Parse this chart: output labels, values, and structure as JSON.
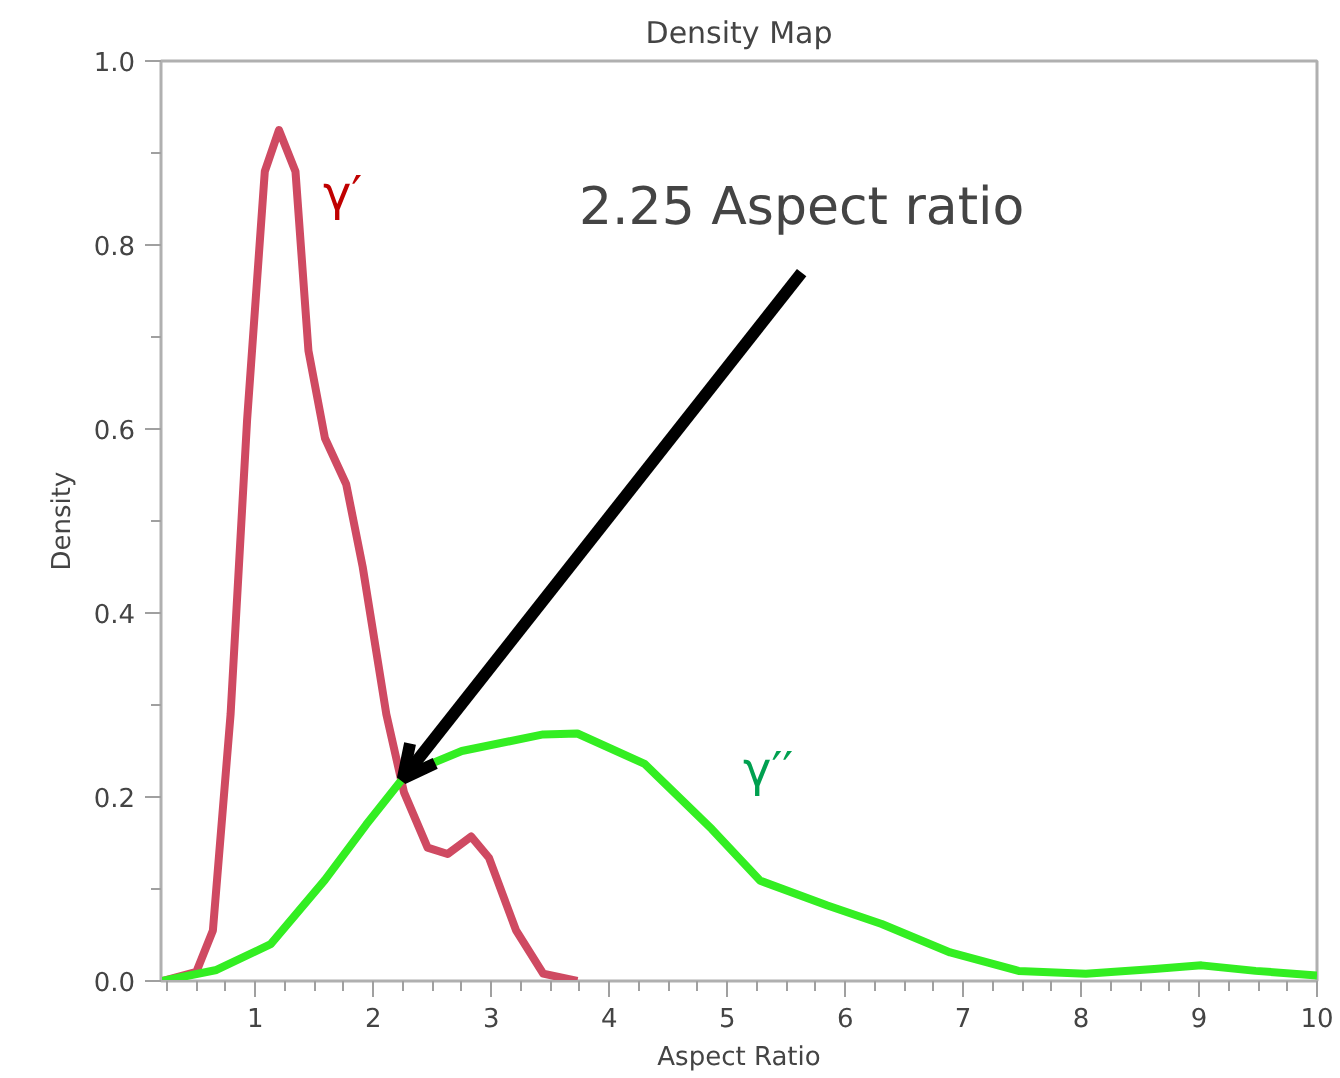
{
  "chart_data": {
    "type": "line",
    "title": "Density Map",
    "xlabel": "Aspect Ratio",
    "ylabel": "Density",
    "xlim": [
      0.2,
      10
    ],
    "xticks": [
      1,
      2,
      3,
      4,
      5,
      6,
      7,
      8,
      9,
      10
    ],
    "ylim": [
      0,
      1
    ],
    "yticks": [
      {
        "value": 0,
        "label": "0.0"
      },
      {
        "value": 0.2,
        "label": "0.2"
      },
      {
        "value": 0.4,
        "label": "0.4"
      },
      {
        "value": 0.6,
        "label": "0.6"
      },
      {
        "value": 0.8,
        "label": "0.8"
      },
      {
        "value": 1,
        "label": "1.0"
      }
    ],
    "grid": false,
    "legend": false,
    "marker": "none",
    "line_style": "solid",
    "series": [
      {
        "name": "γ′",
        "color": "#cf4a62",
        "x": [
          0.21,
          0.5,
          0.64,
          0.79,
          0.93,
          1.08,
          1.2,
          1.34,
          1.45,
          1.59,
          1.77,
          1.91,
          2.11,
          2.26,
          2.46,
          2.63,
          2.83,
          2.98,
          3.21,
          3.44,
          3.73
        ],
        "values": [
          0,
          0.01,
          0.055,
          0.29,
          0.61,
          0.88,
          0.925,
          0.88,
          0.685,
          0.59,
          0.54,
          0.45,
          0.29,
          0.205,
          0.145,
          0.138,
          0.157,
          0.134,
          0.055,
          0.008,
          0
        ]
      },
      {
        "name": "γ′′",
        "color": "#33ee22",
        "x": [
          0.21,
          0.67,
          1.13,
          1.59,
          1.94,
          2.28,
          2.75,
          3.44,
          3.73,
          4.3,
          4.87,
          5.28,
          5.85,
          6.31,
          6.89,
          7.47,
          8.04,
          8.62,
          9.02,
          9.48,
          10
        ],
        "values": [
          0,
          0.012,
          0.04,
          0.11,
          0.17,
          0.225,
          0.25,
          0.268,
          0.269,
          0.236,
          0.165,
          0.109,
          0.082,
          0.062,
          0.031,
          0.011,
          0.008,
          0.013,
          0.017,
          0.011,
          0.006
        ]
      }
    ],
    "annotations": [
      {
        "text": "2.25 Aspect ratio",
        "x": 2.25,
        "y": 0.22
      }
    ]
  }
}
